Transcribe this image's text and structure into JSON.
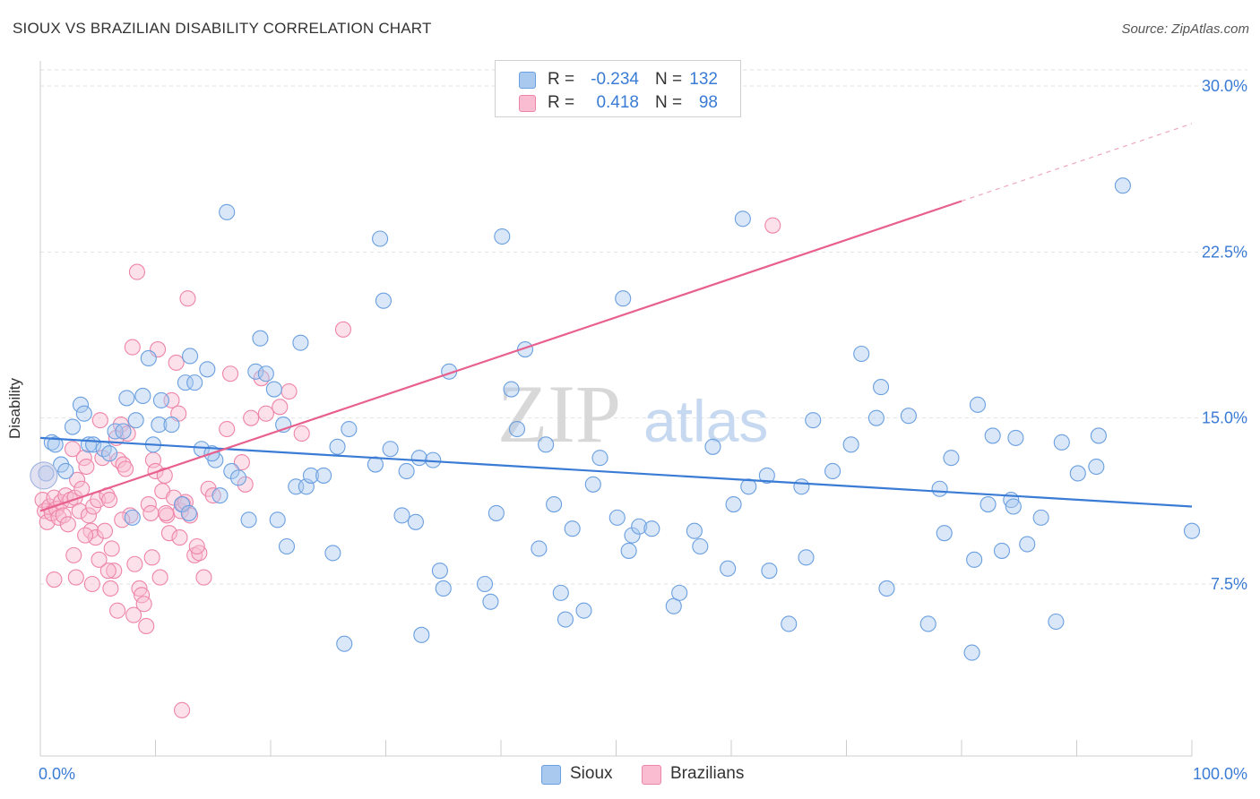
{
  "title": "SIOUX VS BRAZILIAN DISABILITY CORRELATION CHART",
  "source": "Source: ZipAtlas.com",
  "watermark": {
    "zip": "ZIP",
    "atlas": "atlas"
  },
  "legend": {
    "rows": [
      {
        "r_label": "R =",
        "r_value": "-0.234",
        "n_label": "N =",
        "n_value": "132",
        "color": "#aac9ef",
        "border": "#6a9fe0"
      },
      {
        "r_label": "R =",
        "r_value": "0.418",
        "n_label": "N =",
        "n_value": "98",
        "color": "#f9bcd0",
        "border": "#ee84a8"
      }
    ]
  },
  "bottom_legend": [
    {
      "label": "Sioux",
      "color": "#aac9ef",
      "border": "#6a9fe0"
    },
    {
      "label": "Brazilians",
      "color": "#f9bcd0",
      "border": "#ee84a8"
    }
  ],
  "chart_data": {
    "type": "scatter",
    "title": "SIOUX VS BRAZILIAN DISABILITY CORRELATION CHART",
    "xlabel": "",
    "ylabel": "Disability",
    "xlim": [
      0,
      100
    ],
    "ylim": [
      0,
      31
    ],
    "x_tick_labels": [
      "0.0%",
      "100.0%"
    ],
    "y_ticks": [
      7.5,
      15.0,
      22.5,
      30.0
    ],
    "y_tick_labels": [
      "7.5%",
      "15.0%",
      "22.5%",
      "30.0%"
    ],
    "grid": "horizontal dashed",
    "colors": {
      "sioux": "#3a7bd5",
      "brazilians": "#e8608e",
      "axis_text": "#3a7bd5"
    },
    "series": [
      {
        "name": "Sioux",
        "color": "#6a9fe0",
        "trend": {
          "x": [
            0,
            100
          ],
          "y": [
            14.1,
            11.0
          ],
          "style": "solid"
        },
        "points": [
          [
            0.5,
            12.5
          ],
          [
            1.0,
            13.9
          ],
          [
            1.3,
            13.8
          ],
          [
            1.8,
            12.9
          ],
          [
            2.2,
            12.6
          ],
          [
            2.8,
            14.6
          ],
          [
            3.5,
            15.6
          ],
          [
            3.8,
            15.2
          ],
          [
            4.2,
            13.8
          ],
          [
            4.6,
            13.8
          ],
          [
            5.5,
            13.6
          ],
          [
            6.0,
            13.4
          ],
          [
            6.5,
            14.4
          ],
          [
            7.2,
            14.4
          ],
          [
            7.5,
            15.9
          ],
          [
            8.3,
            14.9
          ],
          [
            8.9,
            16.0
          ],
          [
            9.4,
            17.7
          ],
          [
            9.8,
            13.8
          ],
          [
            10.3,
            14.7
          ],
          [
            10.5,
            15.8
          ],
          [
            11.4,
            14.7
          ],
          [
            12.3,
            11.1
          ],
          [
            12.6,
            16.6
          ],
          [
            12.9,
            10.7
          ],
          [
            13.0,
            17.8
          ],
          [
            13.4,
            16.6
          ],
          [
            14.0,
            13.6
          ],
          [
            14.5,
            17.2
          ],
          [
            15.2,
            13.1
          ],
          [
            15.6,
            11.5
          ],
          [
            16.2,
            24.3
          ],
          [
            16.6,
            12.6
          ],
          [
            17.2,
            12.3
          ],
          [
            18.1,
            10.4
          ],
          [
            18.7,
            17.1
          ],
          [
            19.1,
            18.6
          ],
          [
            19.6,
            17.0
          ],
          [
            20.3,
            16.3
          ],
          [
            20.6,
            10.4
          ],
          [
            21.1,
            14.7
          ],
          [
            21.4,
            9.2
          ],
          [
            22.2,
            11.9
          ],
          [
            22.6,
            18.4
          ],
          [
            23.1,
            11.9
          ],
          [
            23.5,
            12.4
          ],
          [
            24.6,
            12.4
          ],
          [
            25.4,
            8.9
          ],
          [
            25.8,
            13.7
          ],
          [
            26.4,
            4.8
          ],
          [
            26.8,
            14.5
          ],
          [
            29.1,
            12.9
          ],
          [
            29.5,
            23.1
          ],
          [
            29.8,
            20.3
          ],
          [
            30.4,
            13.6
          ],
          [
            31.4,
            10.6
          ],
          [
            31.8,
            12.6
          ],
          [
            32.6,
            10.3
          ],
          [
            32.9,
            13.2
          ],
          [
            33.1,
            5.2
          ],
          [
            34.1,
            13.1
          ],
          [
            34.7,
            8.1
          ],
          [
            35.0,
            7.3
          ],
          [
            35.5,
            17.1
          ],
          [
            38.6,
            7.5
          ],
          [
            39.1,
            6.7
          ],
          [
            39.6,
            10.7
          ],
          [
            40.1,
            23.2
          ],
          [
            40.9,
            16.3
          ],
          [
            41.4,
            14.5
          ],
          [
            42.1,
            18.1
          ],
          [
            43.3,
            9.1
          ],
          [
            43.9,
            13.8
          ],
          [
            44.6,
            11.1
          ],
          [
            45.2,
            7.1
          ],
          [
            45.6,
            5.9
          ],
          [
            46.2,
            10.0
          ],
          [
            47.2,
            6.3
          ],
          [
            48.0,
            12.0
          ],
          [
            48.6,
            13.2
          ],
          [
            50.1,
            10.5
          ],
          [
            50.6,
            20.4
          ],
          [
            51.1,
            9.0
          ],
          [
            51.4,
            9.7
          ],
          [
            52.0,
            10.1
          ],
          [
            53.1,
            10.0
          ],
          [
            55.0,
            6.5
          ],
          [
            55.5,
            7.1
          ],
          [
            56.8,
            9.9
          ],
          [
            57.3,
            9.2
          ],
          [
            58.4,
            13.7
          ],
          [
            59.7,
            8.2
          ],
          [
            60.2,
            11.1
          ],
          [
            61.0,
            24.0
          ],
          [
            61.5,
            11.9
          ],
          [
            63.1,
            12.4
          ],
          [
            63.3,
            8.1
          ],
          [
            65.0,
            5.7
          ],
          [
            66.1,
            11.9
          ],
          [
            66.5,
            8.7
          ],
          [
            67.1,
            14.9
          ],
          [
            68.8,
            12.6
          ],
          [
            70.4,
            13.8
          ],
          [
            71.3,
            17.9
          ],
          [
            72.6,
            15.0
          ],
          [
            73.0,
            16.4
          ],
          [
            73.5,
            7.3
          ],
          [
            75.4,
            15.1
          ],
          [
            77.1,
            5.7
          ],
          [
            78.1,
            11.8
          ],
          [
            78.5,
            9.8
          ],
          [
            79.1,
            13.2
          ],
          [
            80.9,
            4.4
          ],
          [
            81.1,
            8.6
          ],
          [
            81.4,
            15.6
          ],
          [
            82.3,
            11.1
          ],
          [
            82.7,
            14.2
          ],
          [
            83.5,
            9.0
          ],
          [
            84.3,
            11.3
          ],
          [
            84.5,
            11.0
          ],
          [
            84.7,
            14.1
          ],
          [
            85.7,
            9.3
          ],
          [
            86.9,
            10.5
          ],
          [
            88.2,
            5.8
          ],
          [
            88.7,
            13.9
          ],
          [
            90.1,
            12.5
          ],
          [
            91.7,
            12.8
          ],
          [
            91.9,
            14.2
          ],
          [
            94.0,
            25.5
          ],
          [
            100.0,
            9.9
          ],
          [
            8.0,
            10.5
          ],
          [
            14.9,
            13.4
          ]
        ]
      },
      {
        "name": "Brazilians",
        "color": "#ee84a8",
        "trend": {
          "x": [
            0,
            80
          ],
          "y": [
            10.8,
            24.8
          ],
          "dash_x": [
            80,
            100
          ],
          "dash_y": [
            24.8,
            28.3
          ]
        },
        "points": [
          [
            0.2,
            11.3
          ],
          [
            0.4,
            10.8
          ],
          [
            0.6,
            10.3
          ],
          [
            0.8,
            11.0
          ],
          [
            1.0,
            10.7
          ],
          [
            1.2,
            11.4
          ],
          [
            1.4,
            10.9
          ],
          [
            1.6,
            10.5
          ],
          [
            1.8,
            11.2
          ],
          [
            2.0,
            10.6
          ],
          [
            2.2,
            11.5
          ],
          [
            2.4,
            10.2
          ],
          [
            2.6,
            11.3
          ],
          [
            2.8,
            13.6
          ],
          [
            3.0,
            11.4
          ],
          [
            3.2,
            12.2
          ],
          [
            3.4,
            10.8
          ],
          [
            3.6,
            11.8
          ],
          [
            3.8,
            13.2
          ],
          [
            4.0,
            12.8
          ],
          [
            4.2,
            10.6
          ],
          [
            4.4,
            9.9
          ],
          [
            4.6,
            11.0
          ],
          [
            4.8,
            9.6
          ],
          [
            5.0,
            11.3
          ],
          [
            5.2,
            14.9
          ],
          [
            5.4,
            13.2
          ],
          [
            5.6,
            9.9
          ],
          [
            5.8,
            11.5
          ],
          [
            6.0,
            11.3
          ],
          [
            6.2,
            9.1
          ],
          [
            6.4,
            8.1
          ],
          [
            6.6,
            14.1
          ],
          [
            6.8,
            13.1
          ],
          [
            7.0,
            14.7
          ],
          [
            7.2,
            12.9
          ],
          [
            7.4,
            12.7
          ],
          [
            7.6,
            14.3
          ],
          [
            7.8,
            10.6
          ],
          [
            8.0,
            18.2
          ],
          [
            8.2,
            8.4
          ],
          [
            8.4,
            21.6
          ],
          [
            8.6,
            7.3
          ],
          [
            8.8,
            7.0
          ],
          [
            9.0,
            6.6
          ],
          [
            9.2,
            5.6
          ],
          [
            9.4,
            11.1
          ],
          [
            9.6,
            10.7
          ],
          [
            9.8,
            13.1
          ],
          [
            10.0,
            12.6
          ],
          [
            10.2,
            18.1
          ],
          [
            10.4,
            7.8
          ],
          [
            10.6,
            11.7
          ],
          [
            10.8,
            12.4
          ],
          [
            11.0,
            10.6
          ],
          [
            11.2,
            9.8
          ],
          [
            11.4,
            15.8
          ],
          [
            11.6,
            11.4
          ],
          [
            11.8,
            17.5
          ],
          [
            12.0,
            15.2
          ],
          [
            12.2,
            10.8
          ],
          [
            12.4,
            11.1
          ],
          [
            12.6,
            11.2
          ],
          [
            12.8,
            20.4
          ],
          [
            13.0,
            10.6
          ],
          [
            13.4,
            8.8
          ],
          [
            13.8,
            8.9
          ],
          [
            14.2,
            7.8
          ],
          [
            14.6,
            11.8
          ],
          [
            15.0,
            11.5
          ],
          [
            16.2,
            14.5
          ],
          [
            16.5,
            17.0
          ],
          [
            17.5,
            13.0
          ],
          [
            17.8,
            12.0
          ],
          [
            18.3,
            15.0
          ],
          [
            19.2,
            16.8
          ],
          [
            19.6,
            15.2
          ],
          [
            20.8,
            15.5
          ],
          [
            21.6,
            16.2
          ],
          [
            22.7,
            14.3
          ],
          [
            26.3,
            19.0
          ],
          [
            1.2,
            7.7
          ],
          [
            2.9,
            8.8
          ],
          [
            3.1,
            7.8
          ],
          [
            4.5,
            7.5
          ],
          [
            5.9,
            8.1
          ],
          [
            6.1,
            7.3
          ],
          [
            6.7,
            6.3
          ],
          [
            9.7,
            8.7
          ],
          [
            10.9,
            10.7
          ],
          [
            12.1,
            9.6
          ],
          [
            12.3,
            1.8
          ],
          [
            13.6,
            9.2
          ],
          [
            63.6,
            23.7
          ],
          [
            7.1,
            10.4
          ],
          [
            8.1,
            6.1
          ],
          [
            3.9,
            9.7
          ],
          [
            5.1,
            8.6
          ]
        ]
      }
    ]
  }
}
